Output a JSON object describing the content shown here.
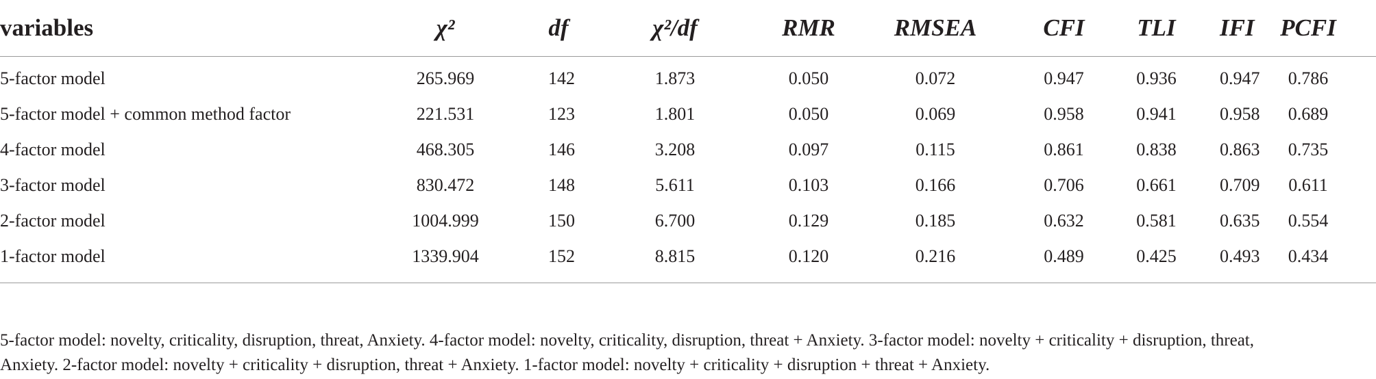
{
  "table": {
    "columns": [
      "variables",
      "χ²",
      "df",
      "χ²/df",
      "RMR",
      "RMSEA",
      "CFI",
      "TLI",
      "IFI",
      "PCFI"
    ],
    "rows": [
      [
        "5-factor model",
        "265.969",
        "142",
        "1.873",
        "0.050",
        "0.072",
        "0.947",
        "0.936",
        "0.947",
        "0.786"
      ],
      [
        "5-factor model + common method factor",
        "221.531",
        "123",
        "1.801",
        "0.050",
        "0.069",
        "0.958",
        "0.941",
        "0.958",
        "0.689"
      ],
      [
        "4-factor model",
        "468.305",
        "146",
        "3.208",
        "0.097",
        "0.115",
        "0.861",
        "0.838",
        "0.863",
        "0.735"
      ],
      [
        "3-factor model",
        "830.472",
        "148",
        "5.611",
        "0.103",
        "0.166",
        "0.706",
        "0.661",
        "0.709",
        "0.611"
      ],
      [
        "2-factor model",
        "1004.999",
        "150",
        "6.700",
        "0.129",
        "0.185",
        "0.632",
        "0.581",
        "0.635",
        "0.554"
      ],
      [
        "1-factor model",
        "1339.904",
        "152",
        "8.815",
        "0.120",
        "0.216",
        "0.489",
        "0.425",
        "0.493",
        "0.434"
      ]
    ]
  },
  "footnote": {
    "line1": "5-factor model: novelty, criticality, disruption, threat, Anxiety. 4-factor model: novelty, criticality, disruption, threat + Anxiety. 3-factor model: novelty + criticality + disruption, threat,",
    "line2": "Anxiety. 2-factor model: novelty + criticality + disruption, threat + Anxiety. 1-factor model: novelty + criticality + disruption + threat + Anxiety."
  }
}
